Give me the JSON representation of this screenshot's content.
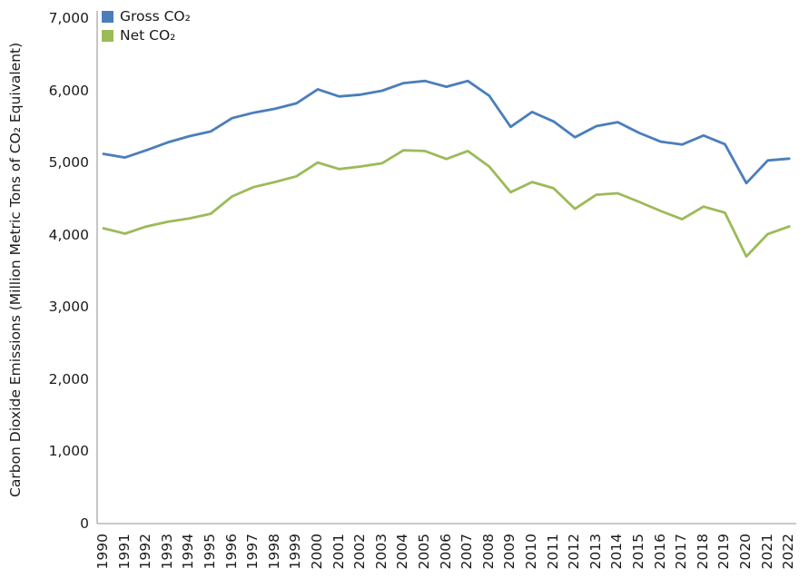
{
  "chart_data": {
    "type": "line",
    "title": "",
    "xlabel": "",
    "ylabel": "Carbon Dioxide Emissions (Million Metric Tons of CO₂ Equivalent)",
    "ylim": [
      0,
      7000
    ],
    "grid": false,
    "legend_position": "top-left-inside",
    "axis_color": "#b7b7b7",
    "text_color": "#1a1a1a",
    "y_ticks": [
      {
        "value": 0,
        "label": "0"
      },
      {
        "value": 1000,
        "label": "1,000"
      },
      {
        "value": 2000,
        "label": "2,000"
      },
      {
        "value": 3000,
        "label": "3,000"
      },
      {
        "value": 4000,
        "label": "4,000"
      },
      {
        "value": 5000,
        "label": "5,000"
      },
      {
        "value": 6000,
        "label": "6,000"
      },
      {
        "value": 7000,
        "label": "7,000"
      }
    ],
    "x": [
      1990,
      1991,
      1992,
      1993,
      1994,
      1995,
      1996,
      1997,
      1998,
      1999,
      2000,
      2001,
      2002,
      2003,
      2004,
      2005,
      2006,
      2007,
      2008,
      2009,
      2010,
      2011,
      2012,
      2013,
      2014,
      2015,
      2016,
      2017,
      2018,
      2019,
      2020,
      2021,
      2022
    ],
    "series": [
      {
        "name": "Gross CO₂",
        "color": "#4a7ebb",
        "values": [
          5120,
          5070,
          5170,
          5280,
          5365,
          5430,
          5615,
          5690,
          5745,
          5820,
          6015,
          5915,
          5940,
          5995,
          6100,
          6130,
          6050,
          6130,
          5925,
          5495,
          5700,
          5570,
          5350,
          5505,
          5560,
          5410,
          5290,
          5250,
          5375,
          5255,
          4715,
          5030,
          5055
        ]
      },
      {
        "name": "Net CO₂",
        "color": "#9bbb59",
        "values": [
          4090,
          4015,
          4115,
          4180,
          4225,
          4290,
          4530,
          4660,
          4730,
          4810,
          5000,
          4910,
          4945,
          4990,
          5170,
          5160,
          5050,
          5160,
          4945,
          4590,
          4730,
          4645,
          4360,
          4555,
          4575,
          4455,
          4330,
          4215,
          4390,
          4305,
          3700,
          4010,
          4115
        ]
      }
    ]
  }
}
